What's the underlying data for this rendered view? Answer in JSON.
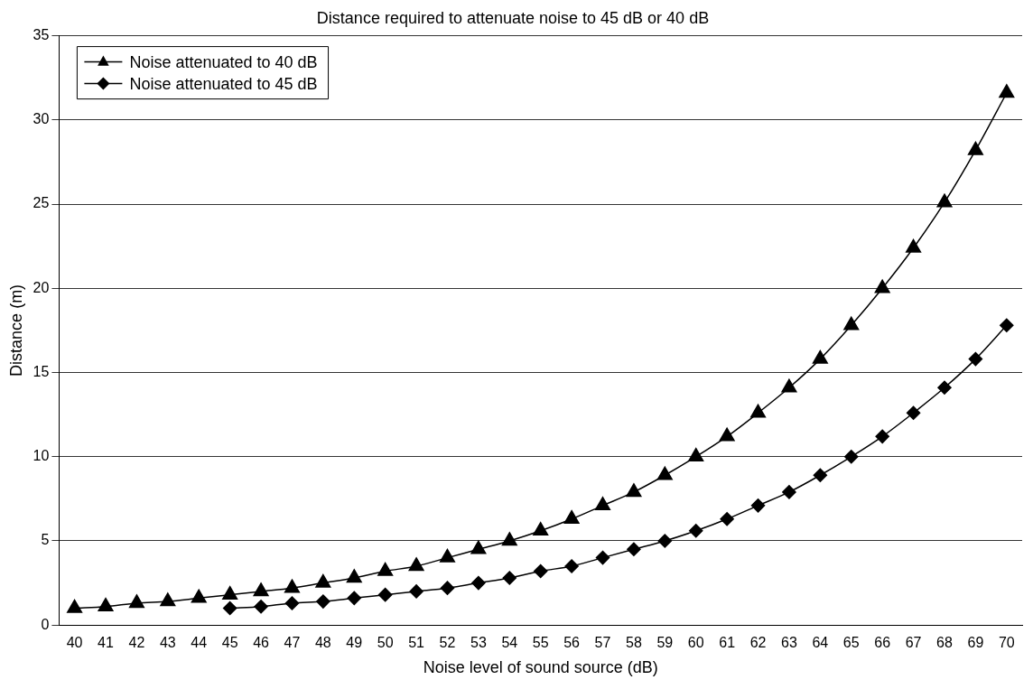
{
  "chart_data": {
    "type": "line",
    "title": "Distance required to attenuate noise to 45 dB or 40 dB",
    "xlabel": "Noise level of sound source (dB)",
    "ylabel": "Distance (m)",
    "categories": [
      "40",
      "41",
      "42",
      "43",
      "44",
      "45",
      "46",
      "47",
      "48",
      "49",
      "50",
      "51",
      "52",
      "53",
      "54",
      "55",
      "56",
      "57",
      "58",
      "59",
      "60",
      "61",
      "62",
      "63",
      "64",
      "65",
      "66",
      "67",
      "68",
      "69",
      "70"
    ],
    "series": [
      {
        "name": "Noise attenuated to 40 dB",
        "color": "#000000",
        "marker": "triangle",
        "values": [
          1.0,
          1.1,
          1.3,
          1.4,
          1.6,
          1.8,
          2.0,
          2.2,
          2.5,
          2.8,
          3.2,
          3.5,
          4.0,
          4.5,
          5.0,
          5.6,
          6.3,
          7.1,
          7.9,
          8.9,
          10.0,
          11.2,
          12.6,
          14.1,
          15.8,
          17.8,
          20.0,
          22.4,
          25.1,
          28.2,
          31.6
        ]
      },
      {
        "name": "Noise attenuated to 45 dB",
        "color": "#000000",
        "marker": "diamond",
        "values": [
          null,
          null,
          null,
          null,
          null,
          1.0,
          1.1,
          1.3,
          1.4,
          1.6,
          1.8,
          2.0,
          2.2,
          2.5,
          2.8,
          3.2,
          3.5,
          4.0,
          4.5,
          5.0,
          5.6,
          6.3,
          7.1,
          7.9,
          8.9,
          10.0,
          11.2,
          12.6,
          14.1,
          15.8,
          17.8
        ]
      }
    ],
    "ylim": [
      0,
      35
    ],
    "yticks": [
      0,
      5,
      10,
      15,
      20,
      25,
      30,
      35
    ],
    "grid": "y",
    "legend": "top left",
    "line_style": "solid"
  }
}
